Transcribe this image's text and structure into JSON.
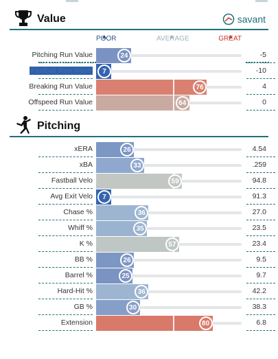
{
  "colors": {
    "accent": "#1f6f78",
    "poor": "#2e4f8c",
    "average": "#9eb4bc",
    "great": "#c0392b"
  },
  "value_section": {
    "title": "Value",
    "brand": "savant",
    "scale": {
      "poor": "POOR",
      "average": "AVERAGE",
      "great": "GREAT"
    },
    "rows": [
      {
        "label": "Pitching Run Value",
        "percentile": 24,
        "value": "-5",
        "color": "#7b93c2"
      },
      {
        "label": "Fastball Run Value",
        "percentile": 7,
        "value": "-10",
        "color": "#3463b0"
      },
      {
        "label": "Breaking Run Value",
        "percentile": 76,
        "value": "4",
        "color": "#d98070"
      },
      {
        "label": "Offspeed Run Value",
        "percentile": 64,
        "value": "0",
        "color": "#c9aaa1"
      }
    ]
  },
  "pitching_section": {
    "title": "Pitching",
    "rows": [
      {
        "label": "xERA",
        "percentile": 26,
        "value": "4.54",
        "color": "#7d97c4"
      },
      {
        "label": "xBA",
        "percentile": 33,
        "value": ".259",
        "color": "#90a8cf"
      },
      {
        "label": "Fastball Velo",
        "percentile": 59,
        "value": "94.8",
        "color": "#c2c7c4"
      },
      {
        "label": "Avg Exit Velo",
        "percentile": 7,
        "value": "91.3",
        "color": "#3463b0"
      },
      {
        "label": "Chase %",
        "percentile": 36,
        "value": "27.0",
        "color": "#9db5d0"
      },
      {
        "label": "Whiff %",
        "percentile": 35,
        "value": "23.5",
        "color": "#9ab3cf"
      },
      {
        "label": "K %",
        "percentile": 57,
        "value": "23.4",
        "color": "#bfc7c4"
      },
      {
        "label": "BB %",
        "percentile": 26,
        "value": "9.5",
        "color": "#7d97c4"
      },
      {
        "label": "Barrel %",
        "percentile": 25,
        "value": "9.7",
        "color": "#7b93c2"
      },
      {
        "label": "Hard-Hit %",
        "percentile": 36,
        "value": "42.2",
        "color": "#9db5d0"
      },
      {
        "label": "GB %",
        "percentile": 30,
        "value": "38.3",
        "color": "#869fc9"
      },
      {
        "label": "Extension",
        "percentile": 80,
        "value": "6.8",
        "color": "#d9796a"
      }
    ]
  }
}
